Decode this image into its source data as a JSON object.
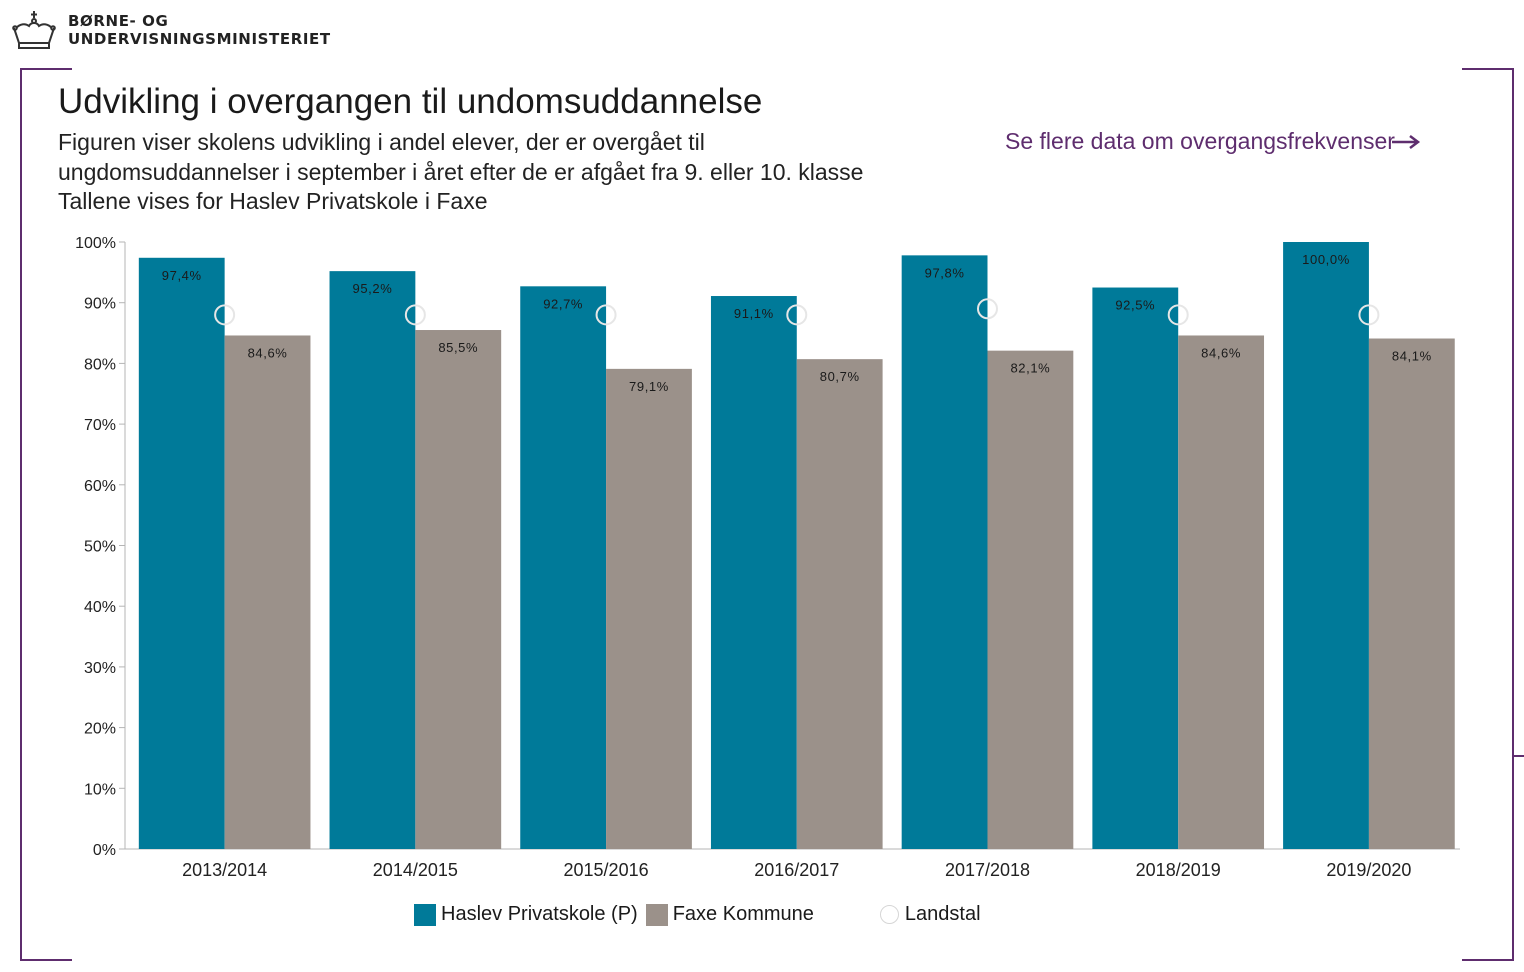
{
  "header": {
    "ministry_line1": "BØRNE- OG",
    "ministry_line2": "UNDERVISNINGSMINISTERIET",
    "logo_icon": "crown-icon"
  },
  "title": "Udvikling i overgangen til undomsuddannelse",
  "subtitle": {
    "line1": "Figuren viser skolens udvikling i andel elever, der er overgået til",
    "line2": "ungdomsuddannelser i september i året efter de er afgået fra 9. eller 10. klasse",
    "line3": "Tallene vises for Haslev Privatskole i Faxe"
  },
  "more_link": {
    "label": "Se flere data om overgangsfrekvenser",
    "icon": "arrow-right-icon"
  },
  "colors": {
    "accent": "#5e2d6e",
    "school": "#007a99",
    "municipality": "#9b918a",
    "landstal": "#e6e6e6"
  },
  "chart_data": {
    "type": "bar",
    "categories": [
      "2013/2014",
      "2014/2015",
      "2015/2016",
      "2016/2017",
      "2017/2018",
      "2018/2019",
      "2019/2020"
    ],
    "series": [
      {
        "name": "Haslev Privatskole (P)",
        "values": [
          97.4,
          95.2,
          92.7,
          91.1,
          97.8,
          92.5,
          100.0
        ],
        "labels": [
          "97,4%",
          "95,2%",
          "92,7%",
          "91,1%",
          "97,8%",
          "92,5%",
          "100,0%"
        ]
      },
      {
        "name": "Faxe Kommune",
        "values": [
          84.6,
          85.5,
          79.1,
          80.7,
          82.1,
          84.6,
          84.1
        ],
        "labels": [
          "84,6%",
          "85,5%",
          "79,1%",
          "80,7%",
          "82,1%",
          "84,6%",
          "84,1%"
        ]
      },
      {
        "name": "Landstal",
        "marker": "circle",
        "values": [
          88,
          88,
          88,
          88,
          89,
          88,
          88
        ]
      }
    ],
    "yticks": [
      "0%",
      "10%",
      "20%",
      "30%",
      "40%",
      "50%",
      "60%",
      "70%",
      "80%",
      "90%",
      "100%"
    ],
    "ylim": [
      0,
      100
    ],
    "grid": false,
    "legend_position": "bottom"
  }
}
